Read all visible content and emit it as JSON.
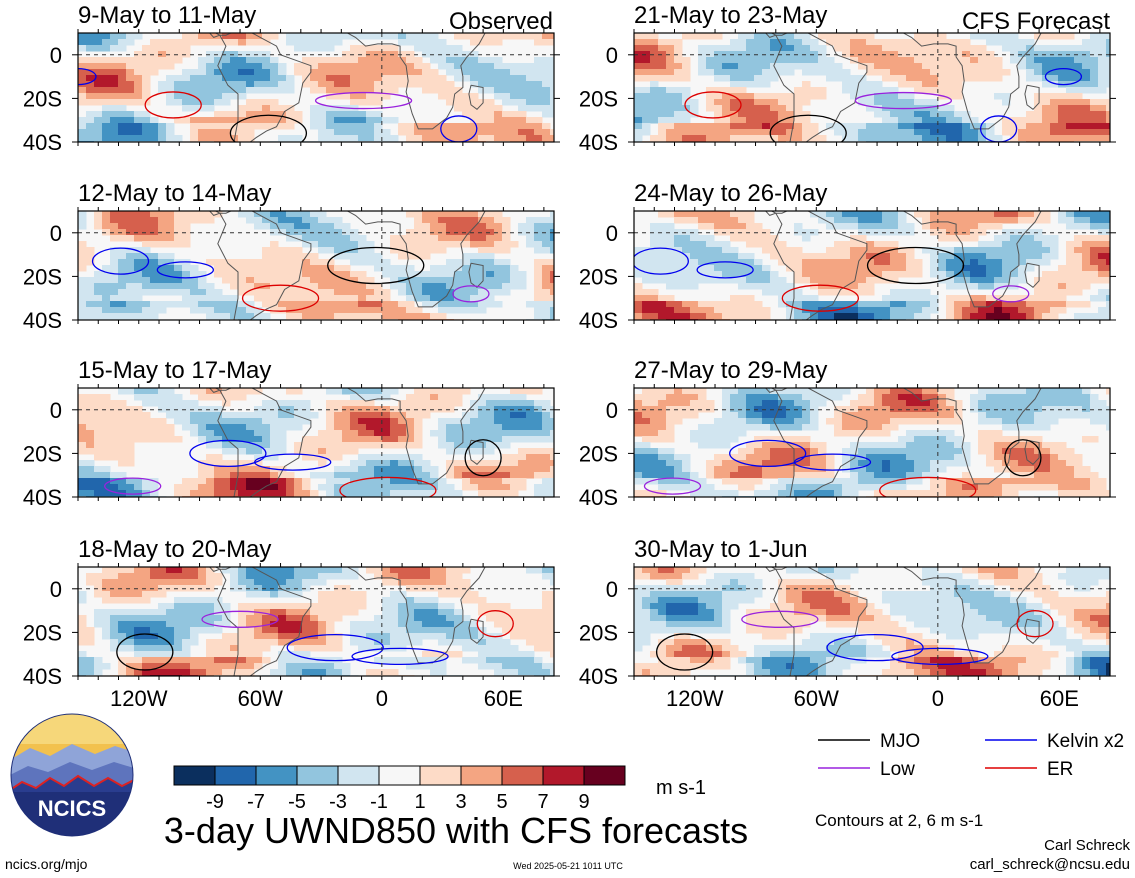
{
  "figure": {
    "main_title": "3-day UWND850 with CFS forecasts",
    "colorbar_units": "m s-1",
    "contour_note": "Contours at 2, 6 m s-1",
    "author_name": "Carl Schreck",
    "author_email": "carl_schreck@ncsu.edu",
    "website": "ncics.org/mjo",
    "timestamp": "Wed 2025-05-21 1011 UTC",
    "logo_text": "NCICS",
    "left_column_label": "Observed",
    "right_column_label": "CFS Forecast"
  },
  "legend": {
    "items": [
      {
        "label": "MJO",
        "color": "#000000"
      },
      {
        "label": "Kelvin x2",
        "color": "#0000ee"
      },
      {
        "label": "Low",
        "color": "#9922dd"
      },
      {
        "label": "ER",
        "color": "#dd0000"
      }
    ]
  },
  "chart_data": {
    "type": "heatmap",
    "variable": "850-hPa zonal wind anomaly, 3-day means",
    "colorbar": {
      "tick_labels": [
        "-9",
        "-7",
        "-5",
        "-3",
        "-1",
        "1",
        "3",
        "5",
        "7",
        "9"
      ],
      "colors": [
        "#0b2f5e",
        "#2166ac",
        "#4393c3",
        "#92c5de",
        "#d1e5f0",
        "#f7f7f7",
        "#fddbc7",
        "#f4a582",
        "#d6604d",
        "#b2182b",
        "#67001f"
      ]
    },
    "x_tick_labels": [
      "120W",
      "60W",
      "0",
      "60E"
    ],
    "x_tick_lons": [
      -120,
      -60,
      0,
      60
    ],
    "y_tick_labels": [
      "0",
      "20S",
      "40S"
    ],
    "y_tick_lats": [
      0,
      -20,
      -40
    ],
    "lon_range": [
      -150,
      85
    ],
    "lat_range": [
      -40,
      10
    ],
    "panels": [
      {
        "title": "9-May to 11-May",
        "column": "observed"
      },
      {
        "title": "12-May to 14-May",
        "column": "observed"
      },
      {
        "title": "15-May to 17-May",
        "column": "observed"
      },
      {
        "title": "18-May to 20-May",
        "column": "observed"
      },
      {
        "title": "21-May to 23-May",
        "column": "forecast"
      },
      {
        "title": "24-May to 26-May",
        "column": "forecast"
      },
      {
        "title": "27-May to 29-May",
        "column": "forecast"
      },
      {
        "title": "30-May to 1-Jun",
        "column": "forecast"
      }
    ]
  }
}
